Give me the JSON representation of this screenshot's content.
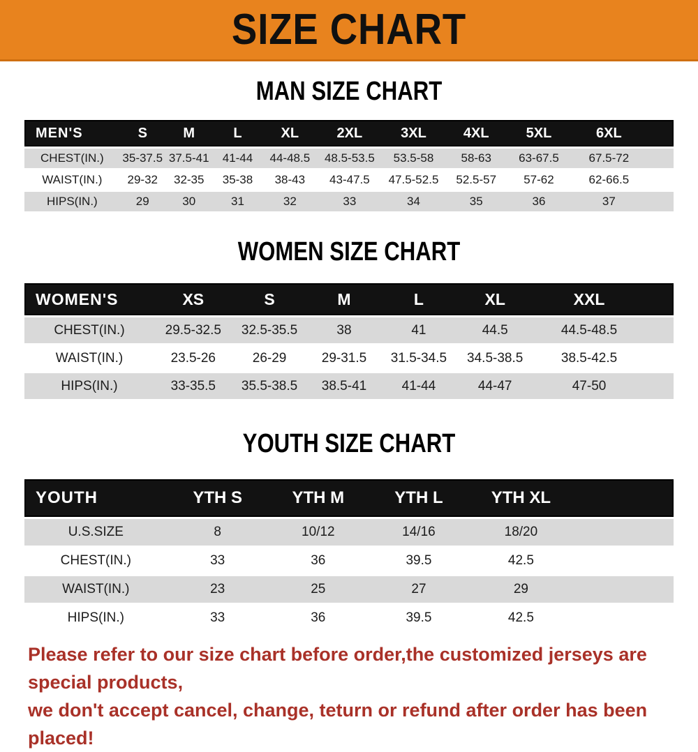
{
  "banner": {
    "title": "SIZE CHART"
  },
  "colors": {
    "banner_bg": "#E8831E",
    "table_header_bg": "#121212",
    "shaded_row_bg": "#D9D9D9",
    "note_color": "#A93128"
  },
  "sections": [
    {
      "id": "men",
      "title": "MAN SIZE CHART",
      "corner_label": "MEN'S",
      "columns": [
        "S",
        "M",
        "L",
        "XL",
        "2XL",
        "3XL",
        "4XL",
        "5XL",
        "6XL"
      ],
      "rows": [
        {
          "label": "CHEST(IN.)",
          "values": [
            "35-37.5",
            "37.5-41",
            "41-44",
            "44-48.5",
            "48.5-53.5",
            "53.5-58",
            "58-63",
            "63-67.5",
            "67.5-72"
          ]
        },
        {
          "label": "WAIST(IN.)",
          "values": [
            "29-32",
            "32-35",
            "35-38",
            "38-43",
            "43-47.5",
            "47.5-52.5",
            "52.5-57",
            "57-62",
            "62-66.5"
          ]
        },
        {
          "label": "HIPS(IN.)",
          "values": [
            "29",
            "30",
            "31",
            "32",
            "33",
            "34",
            "35",
            "36",
            "37"
          ]
        }
      ]
    },
    {
      "id": "women",
      "title": "WOMEN SIZE CHART",
      "corner_label": "WOMEN'S",
      "columns": [
        "XS",
        "S",
        "M",
        "L",
        "XL",
        "XXL"
      ],
      "rows": [
        {
          "label": "CHEST(IN.)",
          "values": [
            "29.5-32.5",
            "32.5-35.5",
            "38",
            "41",
            "44.5",
            "44.5-48.5"
          ]
        },
        {
          "label": "WAIST(IN.)",
          "values": [
            "23.5-26",
            "26-29",
            "29-31.5",
            "31.5-34.5",
            "34.5-38.5",
            "38.5-42.5"
          ]
        },
        {
          "label": "HIPS(IN.)",
          "values": [
            "33-35.5",
            "35.5-38.5",
            "38.5-41",
            "41-44",
            "44-47",
            "47-50"
          ]
        }
      ]
    },
    {
      "id": "youth",
      "title": "YOUTH SIZE CHART",
      "corner_label": "YOUTH",
      "columns": [
        "YTH S",
        "YTH M",
        "YTH L",
        "YTH XL"
      ],
      "rows": [
        {
          "label": "U.S.SIZE",
          "values": [
            "8",
            "10/12",
            "14/16",
            "18/20"
          ]
        },
        {
          "label": "CHEST(IN.)",
          "values": [
            "33",
            "36",
            "39.5",
            "42.5"
          ]
        },
        {
          "label": "WAIST(IN.)",
          "values": [
            "23",
            "25",
            "27",
            "29"
          ]
        },
        {
          "label": "HIPS(IN.)",
          "values": [
            "33",
            "36",
            "39.5",
            "42.5"
          ]
        }
      ]
    }
  ],
  "note": {
    "line1": "Please refer to our size chart before order,the customized jerseys are special products,",
    "line2": "we don't accept cancel, change, teturn or refund after order has been placed!"
  }
}
